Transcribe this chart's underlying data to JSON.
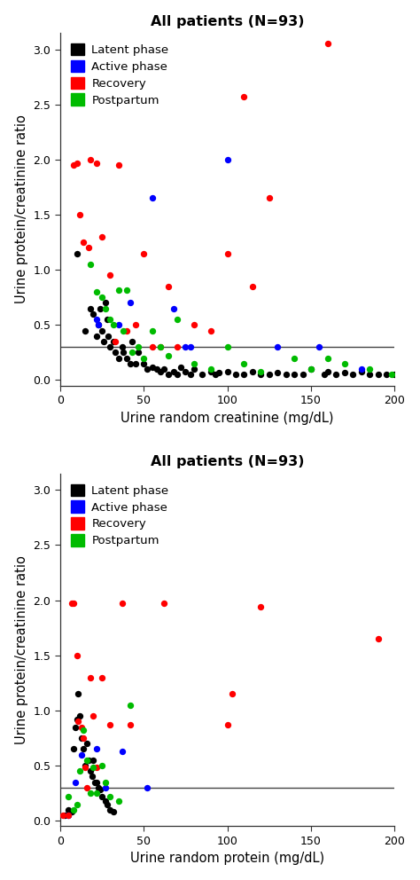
{
  "title": "All patients (N=93)",
  "xlabel1": "Urine random creatinine (mg/dL)",
  "xlabel2": "Urine random protein (mg/dL)",
  "ylabel": "Urine protein/creatinine ratio",
  "hline_y": 0.3,
  "xlim": [
    0,
    200
  ],
  "ylim": [
    -0.05,
    3.15
  ],
  "yticks": [
    0.0,
    0.5,
    1.0,
    1.5,
    2.0,
    2.5,
    3.0
  ],
  "xticks": [
    0,
    50,
    100,
    150,
    200
  ],
  "legend_labels": [
    "Latent phase",
    "Active phase",
    "Recovery",
    "Postpartum"
  ],
  "colors": [
    "#000000",
    "#0000ff",
    "#ff0000",
    "#00bb00"
  ],
  "plot1": {
    "black_x": [
      10,
      15,
      18,
      20,
      22,
      23,
      24,
      25,
      26,
      27,
      28,
      29,
      30,
      32,
      33,
      35,
      37,
      38,
      40,
      42,
      43,
      45,
      47,
      50,
      52,
      55,
      58,
      60,
      62,
      65,
      68,
      70,
      72,
      75,
      78,
      80,
      85,
      90,
      93,
      95,
      100,
      105,
      110,
      115,
      120,
      125,
      130,
      135,
      140,
      145,
      150,
      158,
      160,
      165,
      170,
      175,
      180,
      185,
      190,
      195,
      200
    ],
    "black_y": [
      1.15,
      0.45,
      0.65,
      0.6,
      0.4,
      0.5,
      0.65,
      0.45,
      0.35,
      0.7,
      0.55,
      0.4,
      0.3,
      0.35,
      0.25,
      0.2,
      0.3,
      0.25,
      0.2,
      0.15,
      0.35,
      0.15,
      0.25,
      0.15,
      0.1,
      0.12,
      0.1,
      0.08,
      0.1,
      0.05,
      0.08,
      0.05,
      0.12,
      0.08,
      0.05,
      0.1,
      0.05,
      0.08,
      0.05,
      0.07,
      0.08,
      0.05,
      0.05,
      0.08,
      0.05,
      0.05,
      0.07,
      0.05,
      0.05,
      0.05,
      0.1,
      0.05,
      0.08,
      0.05,
      0.07,
      0.05,
      0.08,
      0.05,
      0.05,
      0.05,
      0.05
    ],
    "blue_x": [
      22,
      23,
      35,
      42,
      55,
      68,
      75,
      78,
      100,
      130,
      155,
      180
    ],
    "blue_y": [
      0.55,
      0.5,
      0.5,
      0.7,
      1.65,
      0.65,
      0.3,
      0.3,
      2.0,
      0.3,
      0.3,
      0.1
    ],
    "red_x": [
      8,
      10,
      12,
      14,
      17,
      18,
      22,
      25,
      30,
      33,
      35,
      40,
      45,
      50,
      55,
      60,
      65,
      70,
      80,
      90,
      100,
      110,
      115,
      125,
      160
    ],
    "red_y": [
      1.95,
      1.97,
      1.5,
      1.25,
      1.2,
      2.0,
      1.97,
      1.3,
      0.95,
      0.35,
      1.95,
      0.45,
      0.5,
      1.15,
      0.3,
      0.3,
      0.85,
      0.3,
      0.5,
      0.45,
      1.15,
      2.57,
      0.85,
      1.65,
      3.05
    ],
    "green_x": [
      18,
      22,
      25,
      27,
      30,
      32,
      35,
      38,
      40,
      43,
      47,
      50,
      55,
      60,
      65,
      70,
      80,
      90,
      100,
      110,
      120,
      140,
      150,
      160,
      170,
      185,
      198
    ],
    "green_y": [
      1.05,
      0.8,
      0.75,
      0.65,
      0.55,
      0.5,
      0.82,
      0.45,
      0.82,
      0.25,
      0.3,
      0.2,
      0.45,
      0.3,
      0.22,
      0.55,
      0.15,
      0.1,
      0.3,
      0.15,
      0.08,
      0.2,
      0.1,
      0.2,
      0.15,
      0.1,
      0.05
    ]
  },
  "plot2": {
    "black_x": [
      3,
      5,
      6,
      7,
      8,
      9,
      10,
      11,
      12,
      13,
      14,
      15,
      16,
      17,
      18,
      19,
      20,
      21,
      22,
      23,
      24,
      25,
      27,
      28,
      30,
      32
    ],
    "black_y": [
      0.05,
      0.1,
      0.08,
      0.08,
      0.65,
      0.85,
      0.92,
      1.15,
      0.95,
      0.75,
      0.65,
      0.5,
      0.7,
      0.55,
      0.45,
      0.4,
      0.55,
      0.35,
      0.35,
      0.3,
      0.28,
      0.22,
      0.18,
      0.15,
      0.1,
      0.08
    ],
    "blue_x": [
      5,
      9,
      13,
      22,
      27,
      37,
      52
    ],
    "blue_y": [
      0.05,
      0.35,
      0.6,
      0.65,
      0.3,
      0.63,
      0.3
    ],
    "red_x": [
      2,
      5,
      7,
      8,
      10,
      11,
      13,
      14,
      15,
      16,
      18,
      20,
      22,
      25,
      30,
      37,
      42,
      62,
      100,
      103,
      120,
      190
    ],
    "red_y": [
      0.05,
      0.05,
      1.97,
      1.97,
      1.5,
      0.9,
      0.85,
      0.75,
      0.48,
      0.3,
      1.3,
      0.95,
      0.48,
      1.3,
      0.87,
      1.97,
      0.87,
      1.97,
      0.87,
      1.15,
      1.94,
      1.65
    ],
    "green_x": [
      5,
      8,
      10,
      12,
      14,
      16,
      18,
      20,
      22,
      25,
      27,
      30,
      35,
      42
    ],
    "green_y": [
      0.22,
      0.1,
      0.15,
      0.45,
      0.82,
      0.55,
      0.25,
      0.48,
      0.25,
      0.5,
      0.35,
      0.22,
      0.18,
      1.05
    ]
  },
  "bg_color": "#ffffff",
  "marker_size": 28,
  "figsize": [
    4.74,
    9.92
  ],
  "dpi": 100
}
